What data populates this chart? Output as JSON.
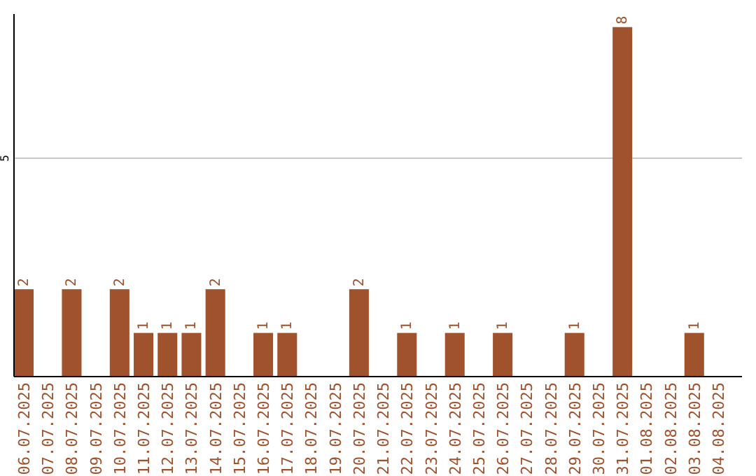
{
  "chart_data": {
    "type": "bar",
    "categories": [
      "06.07.2025",
      "07.07.2025",
      "08.07.2025",
      "09.07.2025",
      "10.07.2025",
      "11.07.2025",
      "12.07.2025",
      "13.07.2025",
      "14.07.2025",
      "15.07.2025",
      "16.07.2025",
      "17.07.2025",
      "18.07.2025",
      "19.07.2025",
      "20.07.2025",
      "21.07.2025",
      "22.07.2025",
      "23.07.2025",
      "24.07.2025",
      "25.07.2025",
      "26.07.2025",
      "27.07.2025",
      "28.07.2025",
      "29.07.2025",
      "30.07.2025",
      "31.07.2025",
      "01.08.2025",
      "02.08.2025",
      "03.08.2025",
      "04.08.2025"
    ],
    "values": [
      2,
      null,
      2,
      null,
      2,
      1,
      1,
      1,
      2,
      null,
      1,
      1,
      null,
      null,
      2,
      null,
      1,
      null,
      1,
      null,
      1,
      null,
      null,
      1,
      null,
      8,
      null,
      null,
      1,
      null
    ],
    "color": "#a0522d",
    "ylim": [
      0,
      8.3
    ],
    "yticks": [
      5
    ],
    "grid": "y",
    "data_labels": true
  }
}
